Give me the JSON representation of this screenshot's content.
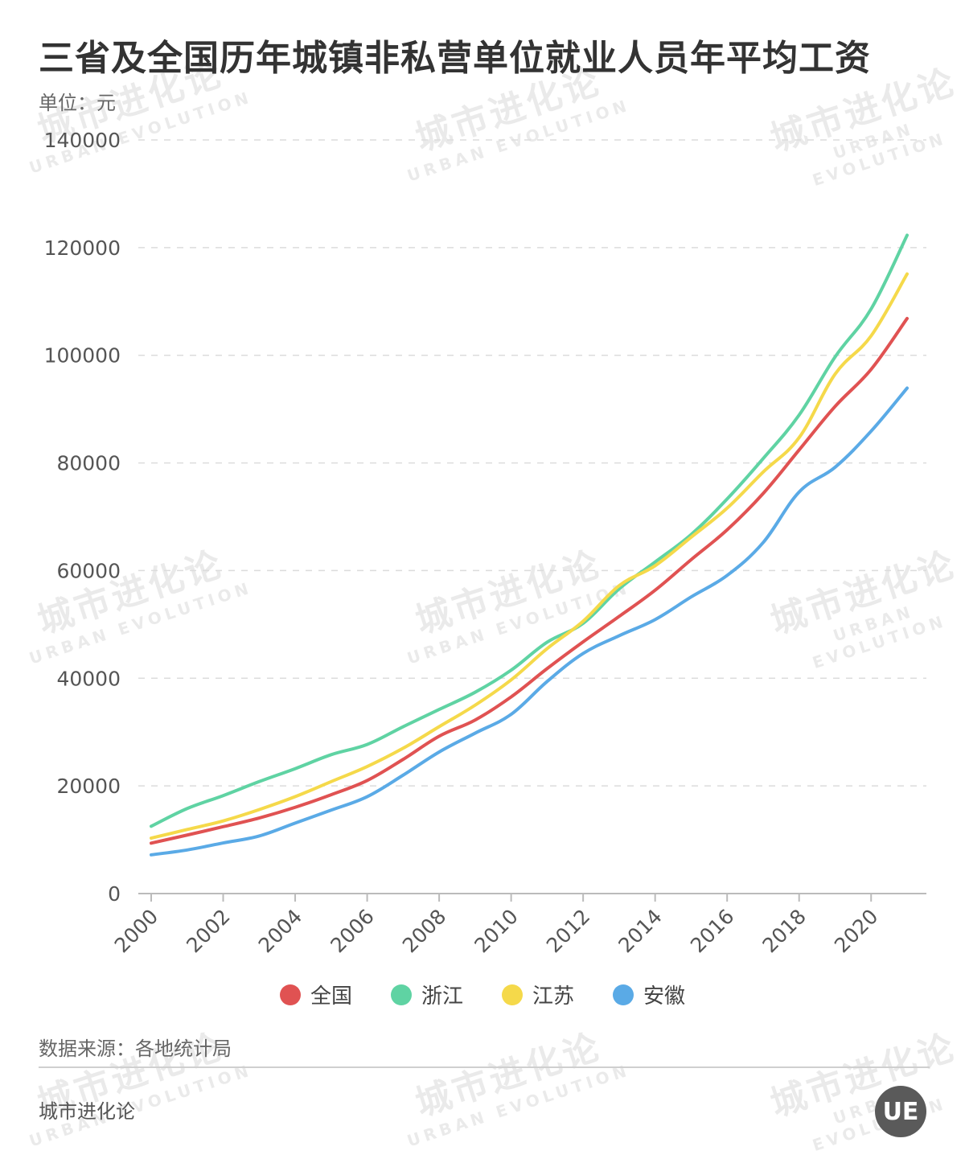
{
  "title": "三省及全国历年城镇非私营单位就业人员年平均工资",
  "unit_label": "单位：元",
  "source": "数据来源：各地统计局",
  "brand": "城市进化论",
  "logo_text": "UE",
  "watermark": {
    "cn": "城市进化论",
    "en": "URBAN EVOLUTION"
  },
  "chart_data": {
    "type": "line",
    "x": [
      2000,
      2001,
      2002,
      2003,
      2004,
      2005,
      2006,
      2007,
      2008,
      2009,
      2010,
      2011,
      2012,
      2013,
      2014,
      2015,
      2016,
      2017,
      2018,
      2019,
      2020,
      2021
    ],
    "x_tick_labels": [
      "2000",
      "2002",
      "2004",
      "2006",
      "2008",
      "2010",
      "2012",
      "2014",
      "2016",
      "2018",
      "2020"
    ],
    "y_tick_labels": [
      "0",
      "20000",
      "40000",
      "60000",
      "80000",
      "100000",
      "120000",
      "140000"
    ],
    "ylim": [
      0,
      140000
    ],
    "grid": true,
    "legend_position": "bottom",
    "series": [
      {
        "name": "全国",
        "color": "#e05252",
        "values": [
          9371,
          10870,
          12422,
          14040,
          16024,
          18364,
          21001,
          24932,
          29229,
          32244,
          36539,
          41799,
          46769,
          51483,
          56360,
          62029,
          67569,
          74318,
          82413,
          90501,
          97379,
          106837
        ]
      },
      {
        "name": "浙江",
        "color": "#5fd3a3",
        "values": [
          12500,
          15800,
          18200,
          20800,
          23200,
          25800,
          27700,
          31000,
          34200,
          37400,
          41500,
          46700,
          50200,
          56600,
          61600,
          66700,
          73300,
          80800,
          88900,
          99700,
          108600,
          122300
        ]
      },
      {
        "name": "江苏",
        "color": "#f5d94a",
        "values": [
          10300,
          11900,
          13500,
          15600,
          18000,
          20800,
          23600,
          27000,
          31000,
          35000,
          39700,
          45500,
          50600,
          57200,
          60900,
          66200,
          71600,
          78300,
          84700,
          96500,
          103600,
          115100
        ]
      },
      {
        "name": "安徽",
        "color": "#5aaae6",
        "values": [
          7200,
          8100,
          9400,
          10700,
          13100,
          15500,
          18000,
          22000,
          26300,
          29800,
          33300,
          39400,
          44600,
          47900,
          50900,
          55100,
          59100,
          65200,
          74600,
          79200,
          85900,
          93900
        ]
      }
    ]
  }
}
